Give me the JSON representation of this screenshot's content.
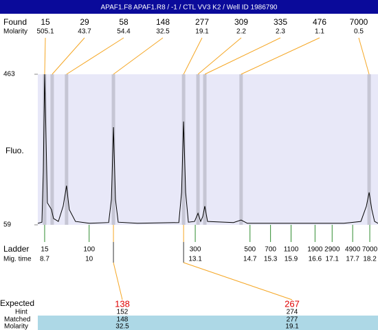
{
  "header": {
    "title": "APAF1.F8  APAF1.R8 / -1 / CTL VV3 K2 / Well ID 1986790"
  },
  "found": {
    "label": "Found",
    "molarity_label": "Molarity",
    "peaks": [
      {
        "size": 15,
        "molarity": 505.1,
        "time": 8.7
      },
      {
        "size": 29,
        "molarity": 43.7,
        "time": 8.92
      },
      {
        "size": 58,
        "molarity": 54.4,
        "time": 9.34
      },
      {
        "size": 148,
        "molarity": 32.5,
        "time": 10.71
      },
      {
        "size": 277,
        "molarity": 19.1,
        "time": 12.76
      },
      {
        "size": 309,
        "molarity": 2.2,
        "time": 13.18
      },
      {
        "size": 335,
        "molarity": 2.3,
        "time": 13.38
      },
      {
        "size": 476,
        "molarity": 1.1,
        "time": 14.44
      },
      {
        "size": 7000,
        "molarity": 0.5,
        "time": 18.18
      }
    ]
  },
  "chart_data": {
    "type": "line",
    "ylabel": "Fluo.",
    "color": "#000000",
    "xlim": [
      8.5,
      18.44
    ],
    "ylim": [
      59,
      463
    ],
    "yticks": [
      59,
      463
    ],
    "x": [
      8.5,
      8.62,
      8.66,
      8.7,
      8.74,
      8.78,
      8.84,
      8.9,
      8.96,
      9.1,
      9.24,
      9.34,
      9.42,
      9.6,
      10.01,
      10.57,
      10.65,
      10.71,
      10.77,
      10.85,
      11.41,
      12.62,
      12.7,
      12.76,
      12.82,
      12.9,
      13.08,
      13.18,
      13.26,
      13.32,
      13.38,
      13.46,
      14.22,
      14.44,
      14.62,
      17.44,
      17.94,
      18.1,
      18.18,
      18.26,
      18.34,
      18.44
    ],
    "values": [
      63,
      66,
      201,
      463,
      293,
      118,
      109,
      100,
      76,
      68,
      109,
      164,
      100,
      68,
      63,
      65,
      127,
      321,
      127,
      66,
      63,
      65,
      146,
      336,
      146,
      66,
      68,
      90,
      68,
      81,
      109,
      68,
      65,
      72,
      63,
      63,
      68,
      109,
      146,
      100,
      68,
      63
    ]
  },
  "ladder": {
    "label": "Ladder",
    "time_label": "Mig. time",
    "points": [
      {
        "size": 15,
        "time": 8.7
      },
      {
        "size": 100,
        "time": 10
      },
      {
        "size": 300,
        "time": 13.1
      },
      {
        "size": 500,
        "time": 14.7
      },
      {
        "size": 700,
        "time": 15.3
      },
      {
        "size": 1100,
        "time": 15.9
      },
      {
        "size": 1900,
        "time": 16.6
      },
      {
        "size": 2900,
        "time": 17.1
      },
      {
        "size": 4900,
        "time": 17.7
      },
      {
        "size": 7000,
        "time": 18.2
      }
    ]
  },
  "expected": {
    "label": "Expected",
    "hint_label": "Hint",
    "matched_label": "Matched",
    "molarity_label": "Molarity",
    "items": [
      {
        "expected": 138,
        "hint": 152,
        "matched": 148,
        "molarity": 32.5
      },
      {
        "expected": 267,
        "hint": 274,
        "matched": 277,
        "molarity": 19.1
      }
    ]
  }
}
